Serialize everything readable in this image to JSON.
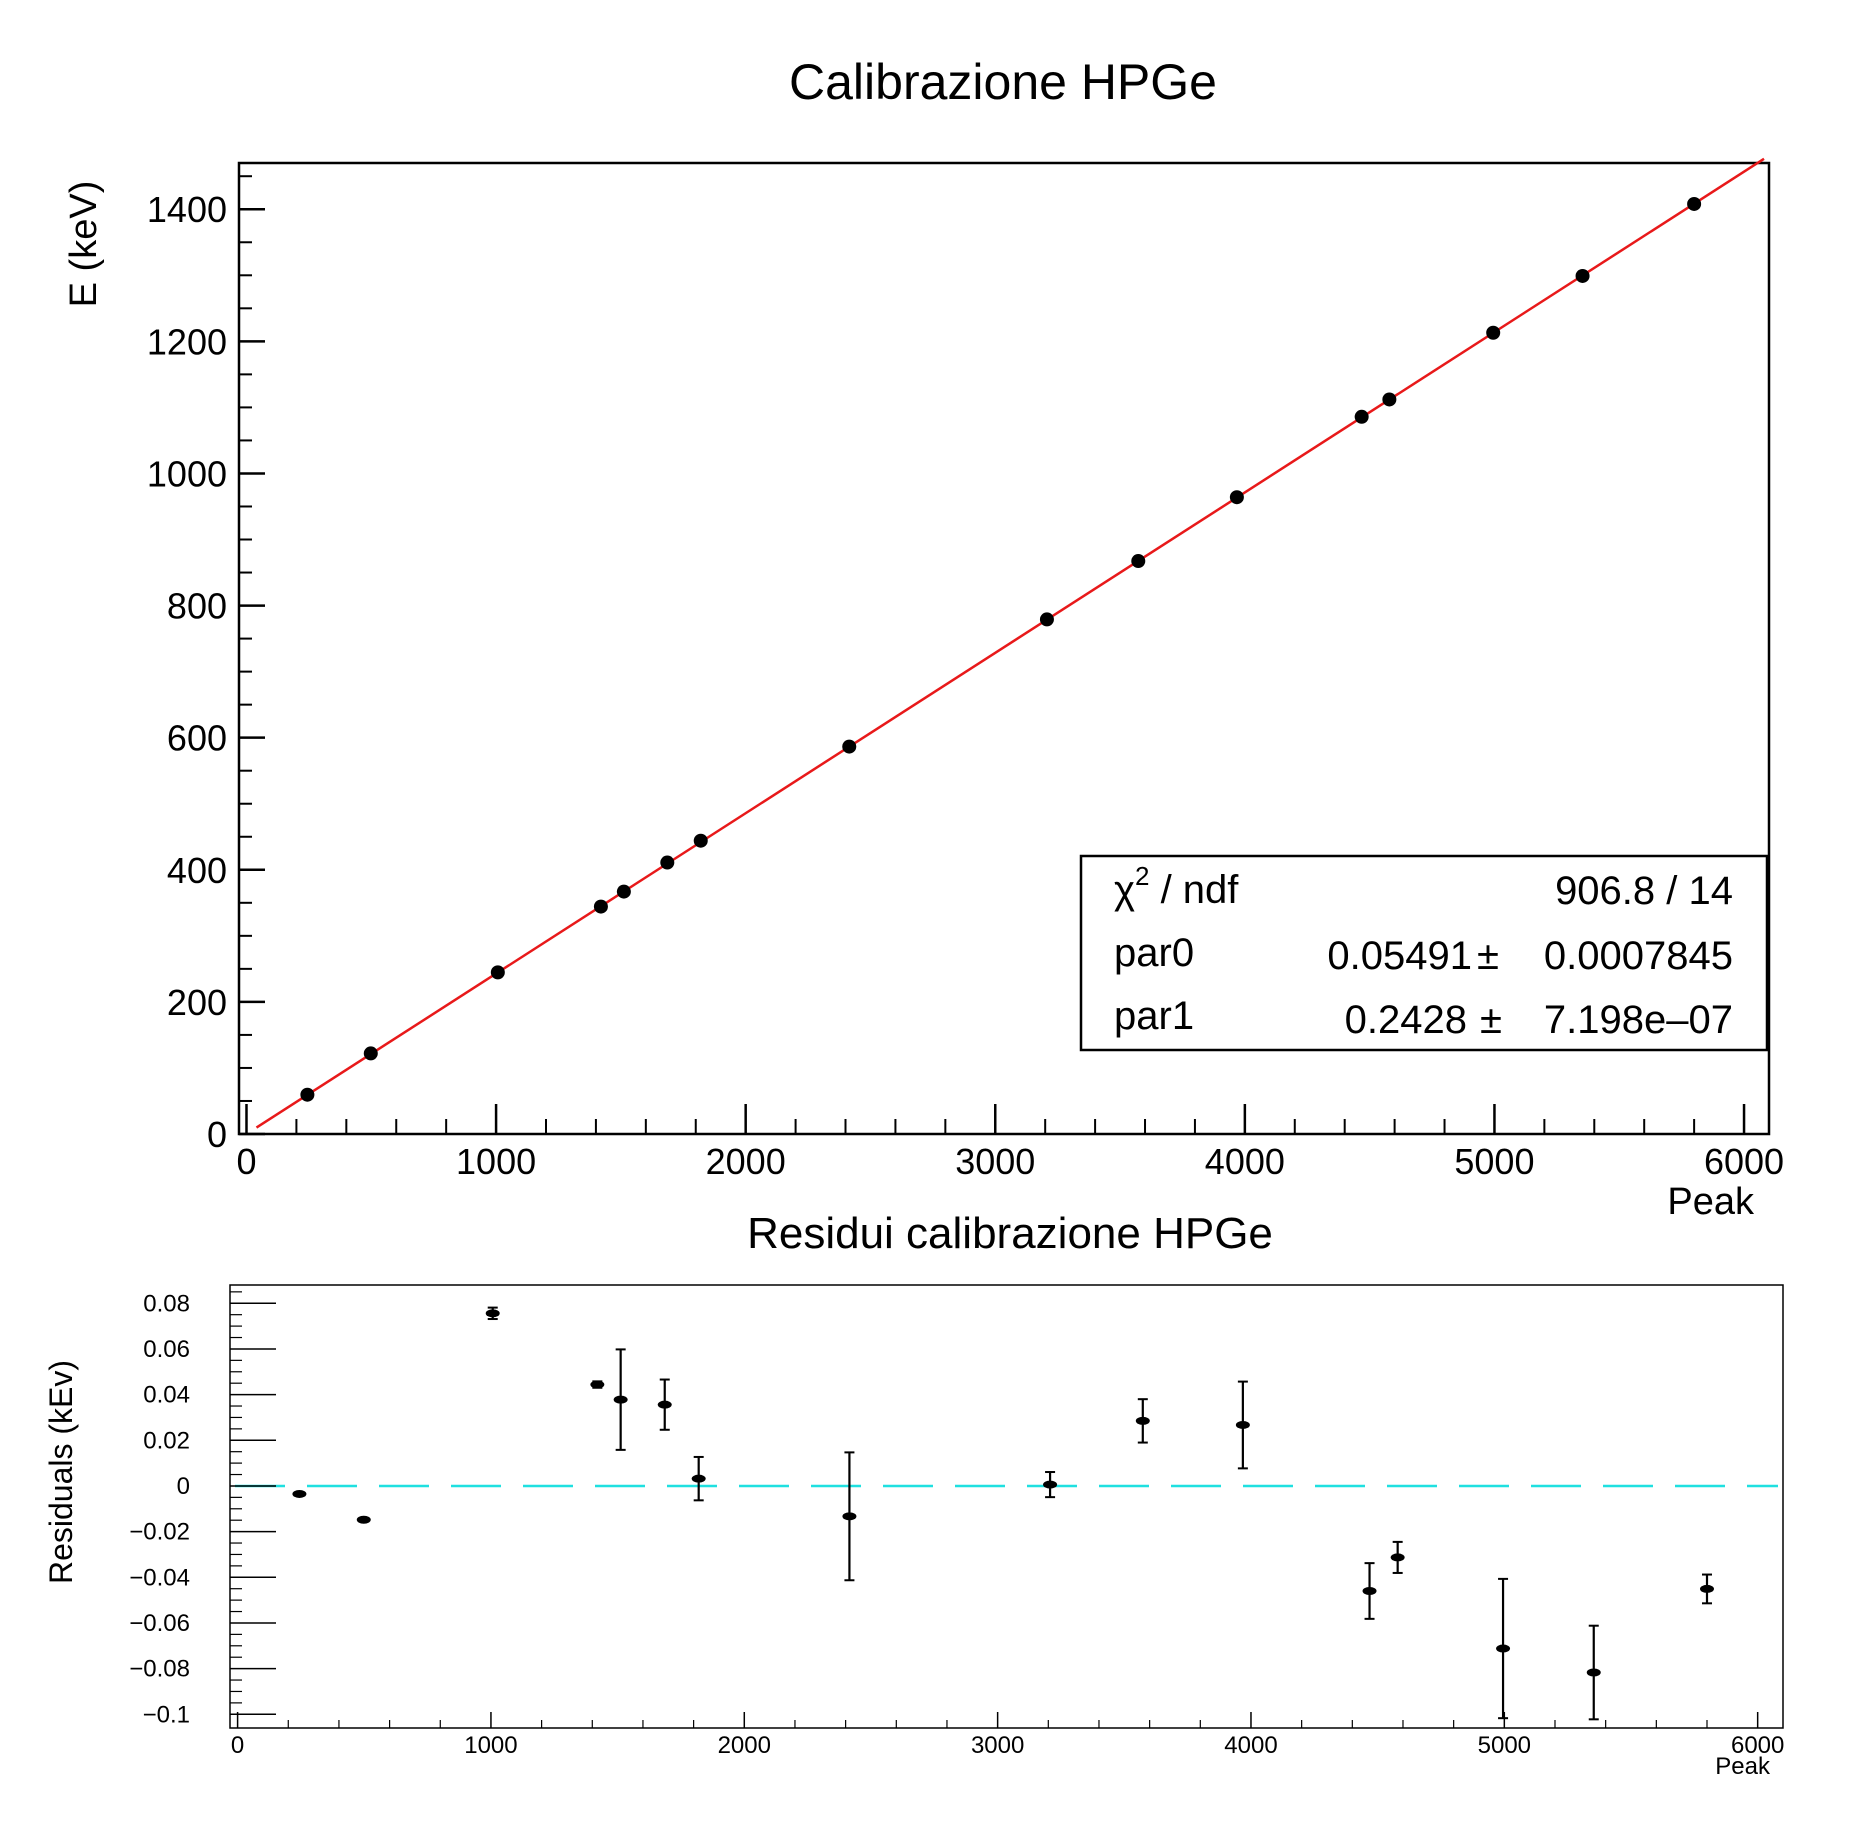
{
  "chart_data": [
    {
      "type": "scatter",
      "title": "Calibrazione HPGe",
      "xlabel": "Peak",
      "ylabel": "E (keV)",
      "xlim": [
        -30,
        6100
      ],
      "ylim": [
        0,
        1470
      ],
      "xticks": [
        "0",
        "1000",
        "2000",
        "3000",
        "4000",
        "5000",
        "6000"
      ],
      "yticks": [
        "0",
        "200",
        "400",
        "600",
        "800",
        "1000",
        "1200",
        "1400"
      ],
      "series": [
        {
          "x": [
            244,
            498,
            1007,
            1420,
            1512,
            1686,
            1820,
            2415,
            3207,
            3573,
            3968,
            4468,
            4579,
            4995,
            5353,
            5800
          ],
          "y": [
            59.5,
            122,
            244.7,
            344.3,
            367,
            411,
            444,
            586.5,
            779,
            867.4,
            964,
            1085.8,
            1112,
            1213,
            1299,
            1408
          ]
        }
      ],
      "fit_line": {
        "color": "#e8191a",
        "x_range": [
          40,
          6080
        ],
        "par0": 0.05491,
        "par1": 0.2428
      },
      "stats_box": {
        "rows": [
          {
            "label": "χ² / ndf",
            "value": "906.8 / 14",
            "sup": "2",
            "base": "χ",
            "rest": " / ndf"
          },
          {
            "label": "par0",
            "value": "0.05491 ± 0.0007845",
            "v1": "0.05491",
            "pm": "±",
            "v2": "0.0007845"
          },
          {
            "label": "par1",
            "value": "0.2428 ± 7.198e–07",
            "v1": "0.2428",
            "pm": "±",
            "v2": "7.198e–07"
          }
        ]
      },
      "marker_color": "#000000"
    },
    {
      "type": "scatter",
      "title": "Residui calibrazione HPGe",
      "xlabel": "Peak",
      "ylabel": "Residuals (kEv)",
      "xlim": [
        -30,
        6100
      ],
      "ylim": [
        -0.106,
        0.088
      ],
      "xticks": [
        "0",
        "1000",
        "2000",
        "3000",
        "4000",
        "5000",
        "6000"
      ],
      "yticks": [
        "0.08",
        "0.06",
        "0.04",
        "0.02",
        "0",
        "−0.02",
        "−0.04",
        "−0.06",
        "−0.08",
        "−0.1"
      ],
      "ytick_values": [
        0.08,
        0.06,
        0.04,
        0.02,
        0,
        -0.02,
        -0.04,
        -0.06,
        -0.08,
        -0.1
      ],
      "series": [
        {
          "x": [
            244,
            498,
            1007,
            1420,
            1512,
            1686,
            1820,
            2415,
            3207,
            3573,
            3968,
            4468,
            4579,
            4995,
            5353,
            5800
          ],
          "y": [
            -0.0035,
            -0.0148,
            0.0756,
            0.0444,
            0.0378,
            0.0356,
            0.0032,
            -0.0133,
            0.0006,
            0.0285,
            0.0267,
            -0.046,
            -0.0313,
            -0.0712,
            -0.0817,
            -0.0451
          ],
          "err": [
            0.0003,
            0.0005,
            0.0025,
            0.0014,
            0.022,
            0.011,
            0.0095,
            0.028,
            0.0055,
            0.0095,
            0.019,
            0.0122,
            0.0068,
            0.0305,
            0.0205,
            0.0063
          ]
        }
      ],
      "reference_line": {
        "y": 0,
        "color": "#1fe0e0",
        "style": "dashed"
      },
      "marker_color": "#000000"
    }
  ]
}
